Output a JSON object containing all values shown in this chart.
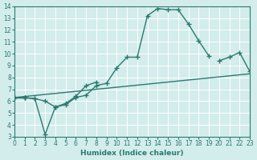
{
  "xlabel": "Humidex (Indice chaleur)",
  "ylabel": "",
  "xlim": [
    0,
    23
  ],
  "ylim": [
    3,
    14
  ],
  "xticks": [
    0,
    1,
    2,
    3,
    4,
    5,
    6,
    7,
    8,
    9,
    10,
    11,
    12,
    13,
    14,
    15,
    16,
    17,
    18,
    19,
    20,
    21,
    22,
    23
  ],
  "yticks": [
    3,
    4,
    5,
    6,
    7,
    8,
    9,
    10,
    11,
    12,
    13,
    14
  ],
  "bg_color": "#d3ecec",
  "line_color": "#2a7a6e",
  "grid_color": "#ffffff",
  "line1_x": [
    0,
    1,
    2,
    3,
    4,
    5,
    6,
    7,
    8,
    9,
    10,
    11,
    12,
    13,
    14,
    15,
    16,
    17,
    18,
    19,
    20,
    21,
    22,
    23
  ],
  "line1_y": [
    6.3,
    6.3,
    6.2,
    6.0,
    5.5,
    5.7,
    6.3,
    6.5,
    7.3,
    7.5,
    8.8,
    9.7,
    9.7,
    13.2,
    13.8,
    13.7,
    13.7,
    12.5,
    11.1,
    9.8,
    null,
    null,
    null,
    null
  ],
  "line2_x": [
    0,
    1,
    2,
    3,
    4,
    5,
    6,
    7,
    8,
    9,
    10,
    11,
    12,
    13,
    14,
    15,
    16,
    17,
    18,
    19,
    20,
    21,
    22,
    23
  ],
  "line2_y": [
    6.3,
    6.3,
    6.2,
    3.2,
    5.5,
    5.8,
    6.4,
    7.3,
    7.6,
    null,
    null,
    null,
    null,
    null,
    null,
    null,
    null,
    null,
    null,
    null,
    null,
    null,
    null,
    null
  ],
  "line3_x": [
    0,
    1,
    2,
    3,
    4,
    5,
    6,
    7,
    8,
    9,
    10,
    11,
    12,
    13,
    14,
    15,
    16,
    17,
    18,
    19,
    20,
    21,
    22,
    23
  ],
  "line3_y": [
    6.3,
    6.3,
    null,
    null,
    null,
    null,
    null,
    null,
    null,
    null,
    null,
    null,
    null,
    null,
    null,
    null,
    null,
    null,
    null,
    null,
    9.4,
    9.7,
    10.1,
    8.5
  ],
  "line4_x": [
    0,
    23
  ],
  "line4_y": [
    6.3,
    8.3
  ]
}
